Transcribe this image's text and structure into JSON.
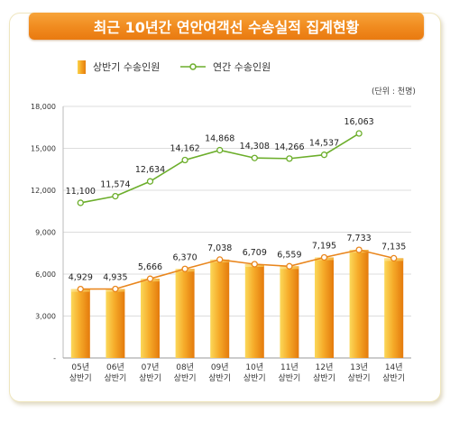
{
  "title": "최근 10년간 연안여객선 수송실적 집계현황",
  "unit_label": "(단위 : 천명)",
  "colors": {
    "bar": "#f4a321",
    "first_half_line": "#e9861d",
    "annual_line": "#6cae2b",
    "title_bg": "#f08a1e"
  },
  "chart_data": {
    "type": "bar",
    "categories": [
      "05년\n상반기",
      "06년\n상반기",
      "07년\n상반기",
      "08년\n상반기",
      "09년\n상반기",
      "10년\n상반기",
      "11년\n상반기",
      "12년\n상반기",
      "13년\n상반기",
      "14년\n상반기"
    ],
    "ylim": [
      0,
      18000
    ],
    "yticks": [
      0,
      3000,
      6000,
      9000,
      12000,
      15000,
      18000
    ],
    "ytick_labels": [
      "-",
      "3,000",
      "6,000",
      "9,000",
      "12,000",
      "15,000",
      "18,000"
    ],
    "grid": true,
    "legend_position": "top-left",
    "series": [
      {
        "name": "상반기 수송인원",
        "kind": "bar",
        "values": [
          4929,
          4935,
          5666,
          6370,
          7038,
          6709,
          6559,
          7195,
          7733,
          7135
        ],
        "labels": [
          "4,929",
          "4,935",
          "5,666",
          "6,370",
          "7,038",
          "6,709",
          "6,559",
          "7,195",
          "7,733",
          "7,135"
        ]
      },
      {
        "name": "연간 수송인원",
        "kind": "line",
        "values": [
          11100,
          11574,
          12634,
          14162,
          14868,
          14308,
          14266,
          14537,
          16063,
          null
        ],
        "labels": [
          "11,100",
          "11,574",
          "12,634",
          "14,162",
          "14,868",
          "14,308",
          "14,266",
          "14,537",
          "16,063",
          ""
        ]
      }
    ]
  }
}
